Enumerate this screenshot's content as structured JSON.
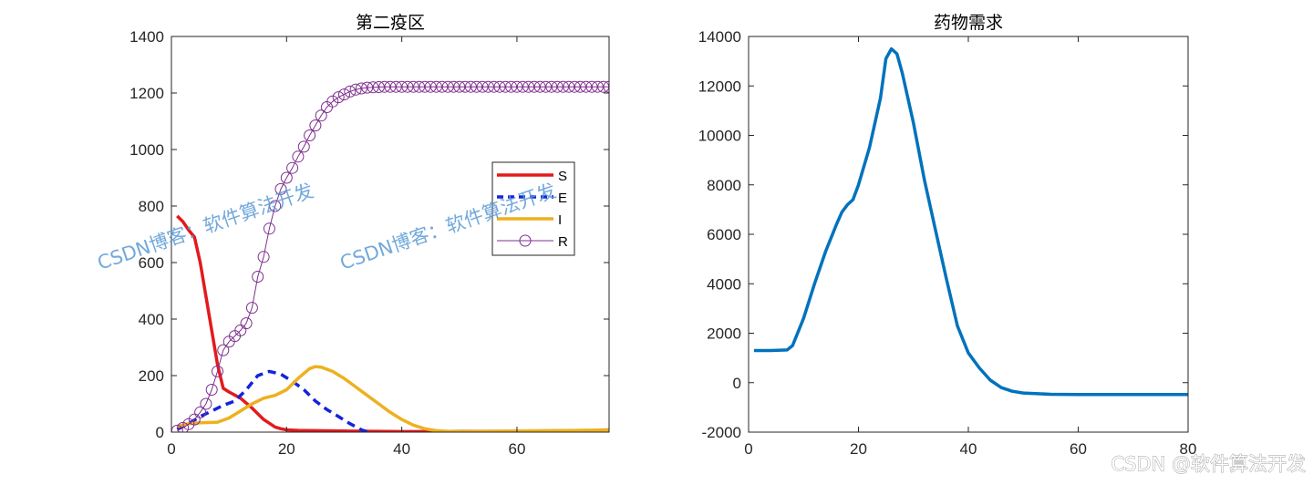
{
  "chart_data": [
    {
      "type": "line",
      "title": "第二疫区",
      "xlabel": "",
      "ylabel": "",
      "xlim": [
        0,
        76
      ],
      "ylim": [
        0,
        1400
      ],
      "xticks": [
        0,
        20,
        40,
        60
      ],
      "yticks": [
        0,
        200,
        400,
        600,
        800,
        1000,
        1200,
        1400
      ],
      "legend_position": "right",
      "series": [
        {
          "name": "S",
          "color": "#e31a1c",
          "style": "solid",
          "marker": "none",
          "x": [
            1,
            2,
            3,
            4,
            5,
            6,
            7,
            8,
            9,
            10,
            12,
            14,
            16,
            18,
            19,
            20,
            22,
            25,
            30,
            35,
            40,
            45,
            50,
            55,
            60,
            65,
            70,
            76
          ],
          "y": [
            765,
            745,
            715,
            690,
            600,
            480,
            360,
            240,
            155,
            142,
            120,
            85,
            45,
            18,
            12,
            8,
            6,
            5,
            4,
            3,
            2,
            2,
            3,
            3,
            3,
            3,
            4,
            8
          ]
        },
        {
          "name": "E",
          "color": "#1524d8",
          "style": "dashed",
          "marker": "none",
          "x": [
            1,
            3,
            5,
            7,
            9,
            11,
            13,
            15,
            17,
            19,
            21,
            23,
            25,
            27,
            29,
            31,
            33,
            34
          ],
          "y": [
            10,
            30,
            55,
            75,
            95,
            110,
            150,
            200,
            215,
            205,
            180,
            150,
            110,
            80,
            55,
            30,
            8,
            2
          ]
        },
        {
          "name": "I",
          "color": "#edb120",
          "style": "solid",
          "marker": "none",
          "x": [
            1,
            3,
            5,
            8,
            10,
            12,
            14,
            16,
            18,
            20,
            22,
            24,
            25,
            26,
            28,
            30,
            32,
            34,
            36,
            38,
            40,
            42,
            44,
            46,
            48,
            50,
            55,
            60,
            65,
            70,
            76
          ],
          "y": [
            20,
            30,
            33,
            35,
            50,
            75,
            100,
            120,
            130,
            150,
            190,
            225,
            232,
            230,
            215,
            190,
            160,
            130,
            100,
            70,
            45,
            25,
            12,
            5,
            3,
            2,
            3,
            4,
            5,
            6,
            7
          ]
        },
        {
          "name": "R",
          "color": "#7e2f8e",
          "style": "solid",
          "marker": "circle",
          "x": [
            1,
            2,
            3,
            4,
            5,
            6,
            7,
            8,
            9,
            10,
            11,
            12,
            13,
            14,
            15,
            16,
            17,
            18,
            19,
            20,
            21,
            22,
            23,
            24,
            25,
            26,
            27,
            28,
            29,
            30,
            31,
            32,
            33,
            34,
            35,
            36,
            37,
            38,
            39,
            40,
            41,
            42,
            43,
            44,
            45,
            46,
            47,
            48,
            49,
            50,
            51,
            52,
            53,
            54,
            55,
            56,
            57,
            58,
            59,
            60,
            61,
            62,
            63,
            64,
            65,
            66,
            67,
            68,
            69,
            70,
            71,
            72,
            73,
            74,
            75,
            76
          ],
          "y": [
            5,
            15,
            28,
            45,
            70,
            100,
            150,
            215,
            290,
            320,
            340,
            360,
            385,
            440,
            550,
            620,
            720,
            800,
            860,
            900,
            935,
            975,
            1010,
            1050,
            1085,
            1120,
            1150,
            1170,
            1185,
            1195,
            1205,
            1212,
            1216,
            1219,
            1220,
            1221,
            1222,
            1222,
            1222,
            1222,
            1222,
            1222,
            1222,
            1222,
            1222,
            1222,
            1222,
            1222,
            1222,
            1222,
            1222,
            1222,
            1222,
            1222,
            1222,
            1222,
            1222,
            1222,
            1222,
            1222,
            1222,
            1222,
            1222,
            1222,
            1222,
            1222,
            1222,
            1222,
            1222,
            1222,
            1222,
            1222,
            1222,
            1222,
            1222,
            1222
          ]
        }
      ]
    },
    {
      "type": "line",
      "title": "药物需求",
      "xlabel": "",
      "ylabel": "",
      "xlim": [
        0,
        80
      ],
      "ylim": [
        -2000,
        14000
      ],
      "xticks": [
        0,
        20,
        40,
        60,
        80
      ],
      "yticks": [
        -2000,
        0,
        2000,
        4000,
        6000,
        8000,
        10000,
        12000,
        14000
      ],
      "series": [
        {
          "name": "药物需求",
          "color": "#0072bd",
          "style": "solid",
          "marker": "none",
          "x": [
            1,
            4,
            7,
            8,
            10,
            12,
            14,
            16,
            17,
            18,
            19,
            20,
            22,
            24,
            25,
            26,
            27,
            28,
            30,
            32,
            34,
            36,
            38,
            40,
            42,
            44,
            46,
            48,
            50,
            55,
            60,
            65,
            70,
            75,
            80
          ],
          "y": [
            1300,
            1300,
            1320,
            1500,
            2600,
            4000,
            5300,
            6400,
            6900,
            7200,
            7400,
            8000,
            9500,
            11500,
            13100,
            13500,
            13300,
            12500,
            10500,
            8200,
            6200,
            4200,
            2300,
            1200,
            600,
            100,
            -200,
            -350,
            -420,
            -470,
            -480,
            -480,
            -480,
            -480,
            -480
          ]
        }
      ]
    }
  ],
  "watermarks": {
    "left": "CSDN博客：软件算法开发",
    "middle": "CSDN博客：软件算法开发",
    "footer": "CSDN @软件算法开发"
  }
}
